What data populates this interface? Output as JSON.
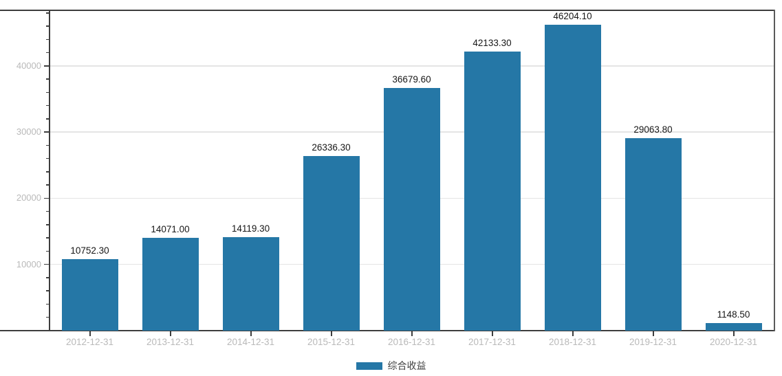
{
  "chart_data": {
    "type": "bar",
    "title": "",
    "xlabel": "",
    "ylabel": "",
    "categories": [
      "2012-12-31",
      "2013-12-31",
      "2014-12-31",
      "2015-12-31",
      "2016-12-31",
      "2017-12-31",
      "2018-12-31",
      "2019-12-31",
      "2020-12-31"
    ],
    "values": [
      10752.3,
      14071.0,
      14119.3,
      26336.3,
      36679.6,
      42133.3,
      46204.1,
      29063.8,
      1148.5
    ],
    "value_labels": [
      "10752.30",
      "14071.00",
      "14119.30",
      "26336.30",
      "36679.60",
      "42133.30",
      "46204.10",
      "29063.80",
      "1148.50"
    ],
    "series_name": "综合收益",
    "ylim": [
      0,
      48400
    ],
    "yticks": [
      10000,
      20000,
      30000,
      40000
    ],
    "ytick_labels": [
      "10000",
      "20000",
      "30000",
      "40000"
    ],
    "minor_tick_step": 2000,
    "grid": "horizontal-major-only",
    "legend_position": "bottom-center",
    "colors": {
      "bar": "#2577a6",
      "grid": "#e4e4e4",
      "axis": "#3d3d3d",
      "tick_label": "#b9b9b9",
      "value_label": "#161616",
      "legend_text": "#3f3f3f",
      "background": "#ffffff"
    }
  },
  "legend": {
    "items": [
      {
        "label": "综合收益",
        "color": "#2577a6"
      }
    ]
  }
}
